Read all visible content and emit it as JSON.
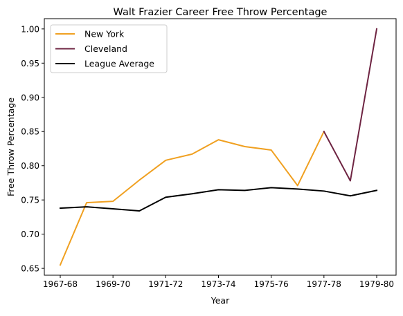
{
  "chart_data": {
    "type": "line",
    "title": "Walt Frazier Career Free Throw Percentage",
    "xlabel": "Year",
    "ylabel": "Free Throw Percentage",
    "x": [
      "1967-68",
      "1968-69",
      "1969-70",
      "1970-71",
      "1971-72",
      "1972-73",
      "1973-74",
      "1974-75",
      "1975-76",
      "1976-77",
      "1977-78",
      "1978-79",
      "1979-80"
    ],
    "x_tick_labels": [
      "1967-68",
      "1969-70",
      "1971-72",
      "1973-74",
      "1975-76",
      "1977-78",
      "1979-80"
    ],
    "y_tick_labels": [
      "0.65",
      "0.70",
      "0.75",
      "0.80",
      "0.85",
      "0.90",
      "0.95",
      "1.00"
    ],
    "ylim": [
      0.64,
      1.015
    ],
    "grid": false,
    "legend_position": "top-left",
    "series": [
      {
        "name": "New York",
        "color": "#f0a020",
        "values": [
          0.655,
          0.746,
          0.748,
          0.779,
          0.808,
          0.817,
          0.838,
          0.828,
          0.823,
          0.771,
          0.85,
          null,
          null
        ]
      },
      {
        "name": "Cleveland",
        "color": "#6e2442",
        "values": [
          null,
          null,
          null,
          null,
          null,
          null,
          null,
          null,
          null,
          null,
          0.85,
          0.778,
          1.0
        ]
      },
      {
        "name": "League Average",
        "color": "#000000",
        "values": [
          0.738,
          0.74,
          0.737,
          0.734,
          0.754,
          0.759,
          0.765,
          0.764,
          0.768,
          0.766,
          0.763,
          0.756,
          0.764
        ]
      }
    ]
  }
}
